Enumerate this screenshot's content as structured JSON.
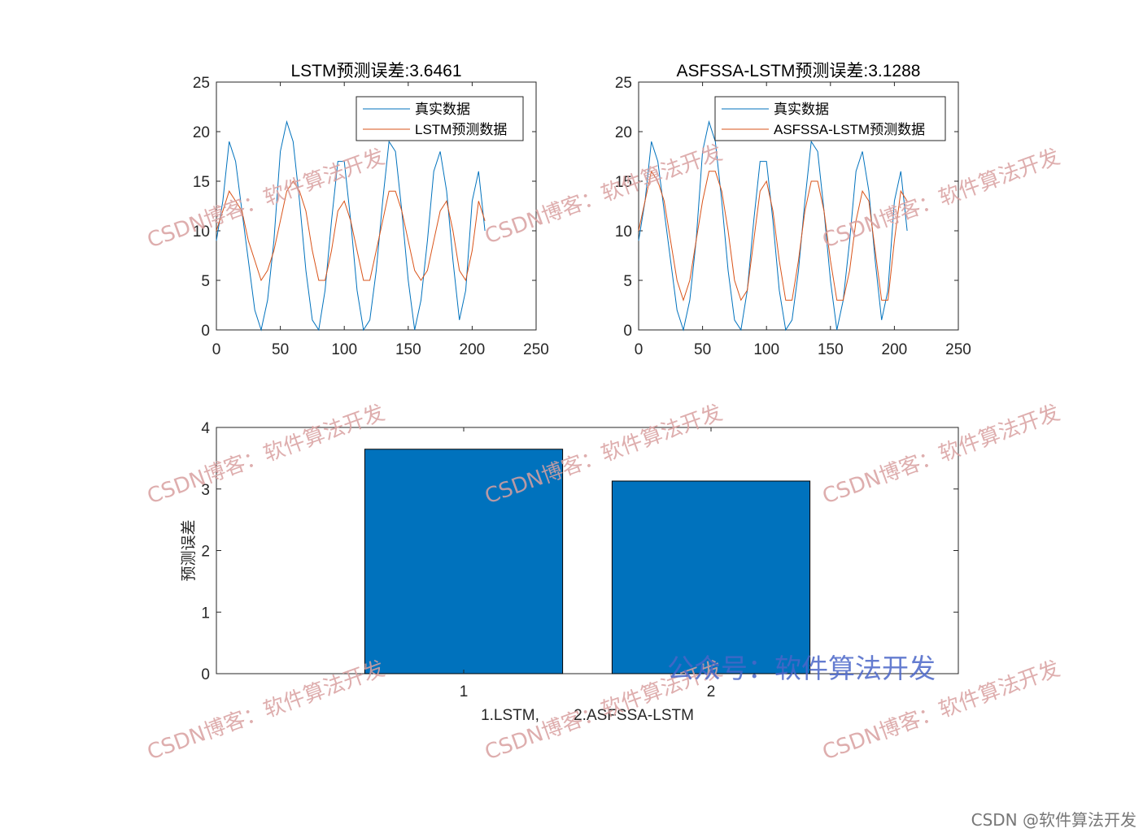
{
  "chart_data": [
    {
      "type": "line",
      "title": "LSTM预测误差:3.6461",
      "xlim": [
        0,
        250
      ],
      "ylim": [
        0,
        25
      ],
      "xticks": [
        0,
        50,
        100,
        150,
        200,
        250
      ],
      "yticks": [
        0,
        5,
        10,
        15,
        20,
        25
      ],
      "legend_position": "top-right",
      "series": [
        {
          "name": "真实数据",
          "color": "#0072BD",
          "x": [
            0,
            5,
            10,
            15,
            20,
            25,
            30,
            35,
            40,
            45,
            50,
            55,
            60,
            65,
            70,
            75,
            80,
            85,
            90,
            95,
            100,
            105,
            110,
            115,
            120,
            125,
            130,
            135,
            140,
            145,
            150,
            155,
            160,
            165,
            170,
            175,
            180,
            185,
            190,
            195,
            200,
            205,
            210
          ],
          "values": [
            9,
            13,
            19,
            17,
            12,
            7,
            2,
            0,
            3,
            9,
            18,
            21,
            19,
            13,
            6,
            1,
            0,
            4,
            11,
            17,
            17,
            11,
            4,
            0,
            1,
            6,
            13,
            19,
            18,
            12,
            5,
            0,
            3,
            9,
            16,
            18,
            14,
            7,
            1,
            4,
            13,
            16,
            10
          ]
        },
        {
          "name": "LSTM预测数据",
          "color": "#D95319",
          "x": [
            0,
            5,
            10,
            15,
            20,
            25,
            30,
            35,
            40,
            45,
            50,
            55,
            60,
            65,
            70,
            75,
            80,
            85,
            90,
            95,
            100,
            105,
            110,
            115,
            120,
            125,
            130,
            135,
            140,
            145,
            150,
            155,
            160,
            165,
            170,
            175,
            180,
            185,
            190,
            195,
            200,
            205,
            210
          ],
          "values": [
            10,
            12,
            14,
            13,
            12,
            9,
            7,
            5,
            6,
            8,
            11,
            14,
            15,
            14,
            12,
            8,
            5,
            5,
            8,
            12,
            13,
            11,
            8,
            5,
            5,
            8,
            11,
            14,
            14,
            12,
            9,
            6,
            5,
            6,
            9,
            12,
            13,
            10,
            6,
            5,
            8,
            13,
            11
          ]
        }
      ]
    },
    {
      "type": "line",
      "title": "ASFSSA-LSTM预测误差:3.1288",
      "xlim": [
        0,
        250
      ],
      "ylim": [
        0,
        25
      ],
      "xticks": [
        0,
        50,
        100,
        150,
        200,
        250
      ],
      "yticks": [
        0,
        5,
        10,
        15,
        20,
        25
      ],
      "legend_position": "top-right",
      "series": [
        {
          "name": "真实数据",
          "color": "#0072BD",
          "x": [
            0,
            5,
            10,
            15,
            20,
            25,
            30,
            35,
            40,
            45,
            50,
            55,
            60,
            65,
            70,
            75,
            80,
            85,
            90,
            95,
            100,
            105,
            110,
            115,
            120,
            125,
            130,
            135,
            140,
            145,
            150,
            155,
            160,
            165,
            170,
            175,
            180,
            185,
            190,
            195,
            200,
            205,
            210
          ],
          "values": [
            9,
            13,
            19,
            17,
            12,
            7,
            2,
            0,
            3,
            9,
            18,
            21,
            19,
            13,
            6,
            1,
            0,
            4,
            11,
            17,
            17,
            11,
            4,
            0,
            1,
            6,
            13,
            19,
            18,
            12,
            5,
            0,
            3,
            9,
            16,
            18,
            14,
            7,
            1,
            4,
            13,
            16,
            10
          ]
        },
        {
          "name": "ASFSSA-LSTM预测数据",
          "color": "#D95319",
          "x": [
            0,
            5,
            10,
            15,
            20,
            25,
            30,
            35,
            40,
            45,
            50,
            55,
            60,
            65,
            70,
            75,
            80,
            85,
            90,
            95,
            100,
            105,
            110,
            115,
            120,
            125,
            130,
            135,
            140,
            145,
            150,
            155,
            160,
            165,
            170,
            175,
            180,
            185,
            190,
            195,
            200,
            205,
            210
          ],
          "values": [
            10,
            13,
            16,
            15,
            13,
            9,
            5,
            3,
            5,
            9,
            13,
            16,
            16,
            14,
            10,
            5,
            3,
            4,
            9,
            14,
            15,
            12,
            7,
            3,
            3,
            7,
            12,
            15,
            15,
            12,
            7,
            3,
            3,
            6,
            11,
            14,
            13,
            8,
            3,
            3,
            9,
            14,
            13
          ]
        }
      ]
    },
    {
      "type": "bar",
      "categories": [
        "1",
        "2"
      ],
      "values": [
        3.6461,
        3.1288
      ],
      "ylabel": "预测误差",
      "xlabel": "1.LSTM,        2.ASFSSA-LSTM",
      "ylim": [
        0,
        4
      ],
      "xlim": [
        0,
        3
      ],
      "yticks": [
        0,
        1,
        2,
        3,
        4
      ],
      "bar_color": "#0072BD"
    }
  ],
  "watermarks": {
    "csdn_blog": "CSDN博客：软件算法开发",
    "wechat": "公众号：软件算法开发",
    "corner": "CSDN @软件算法开发"
  }
}
